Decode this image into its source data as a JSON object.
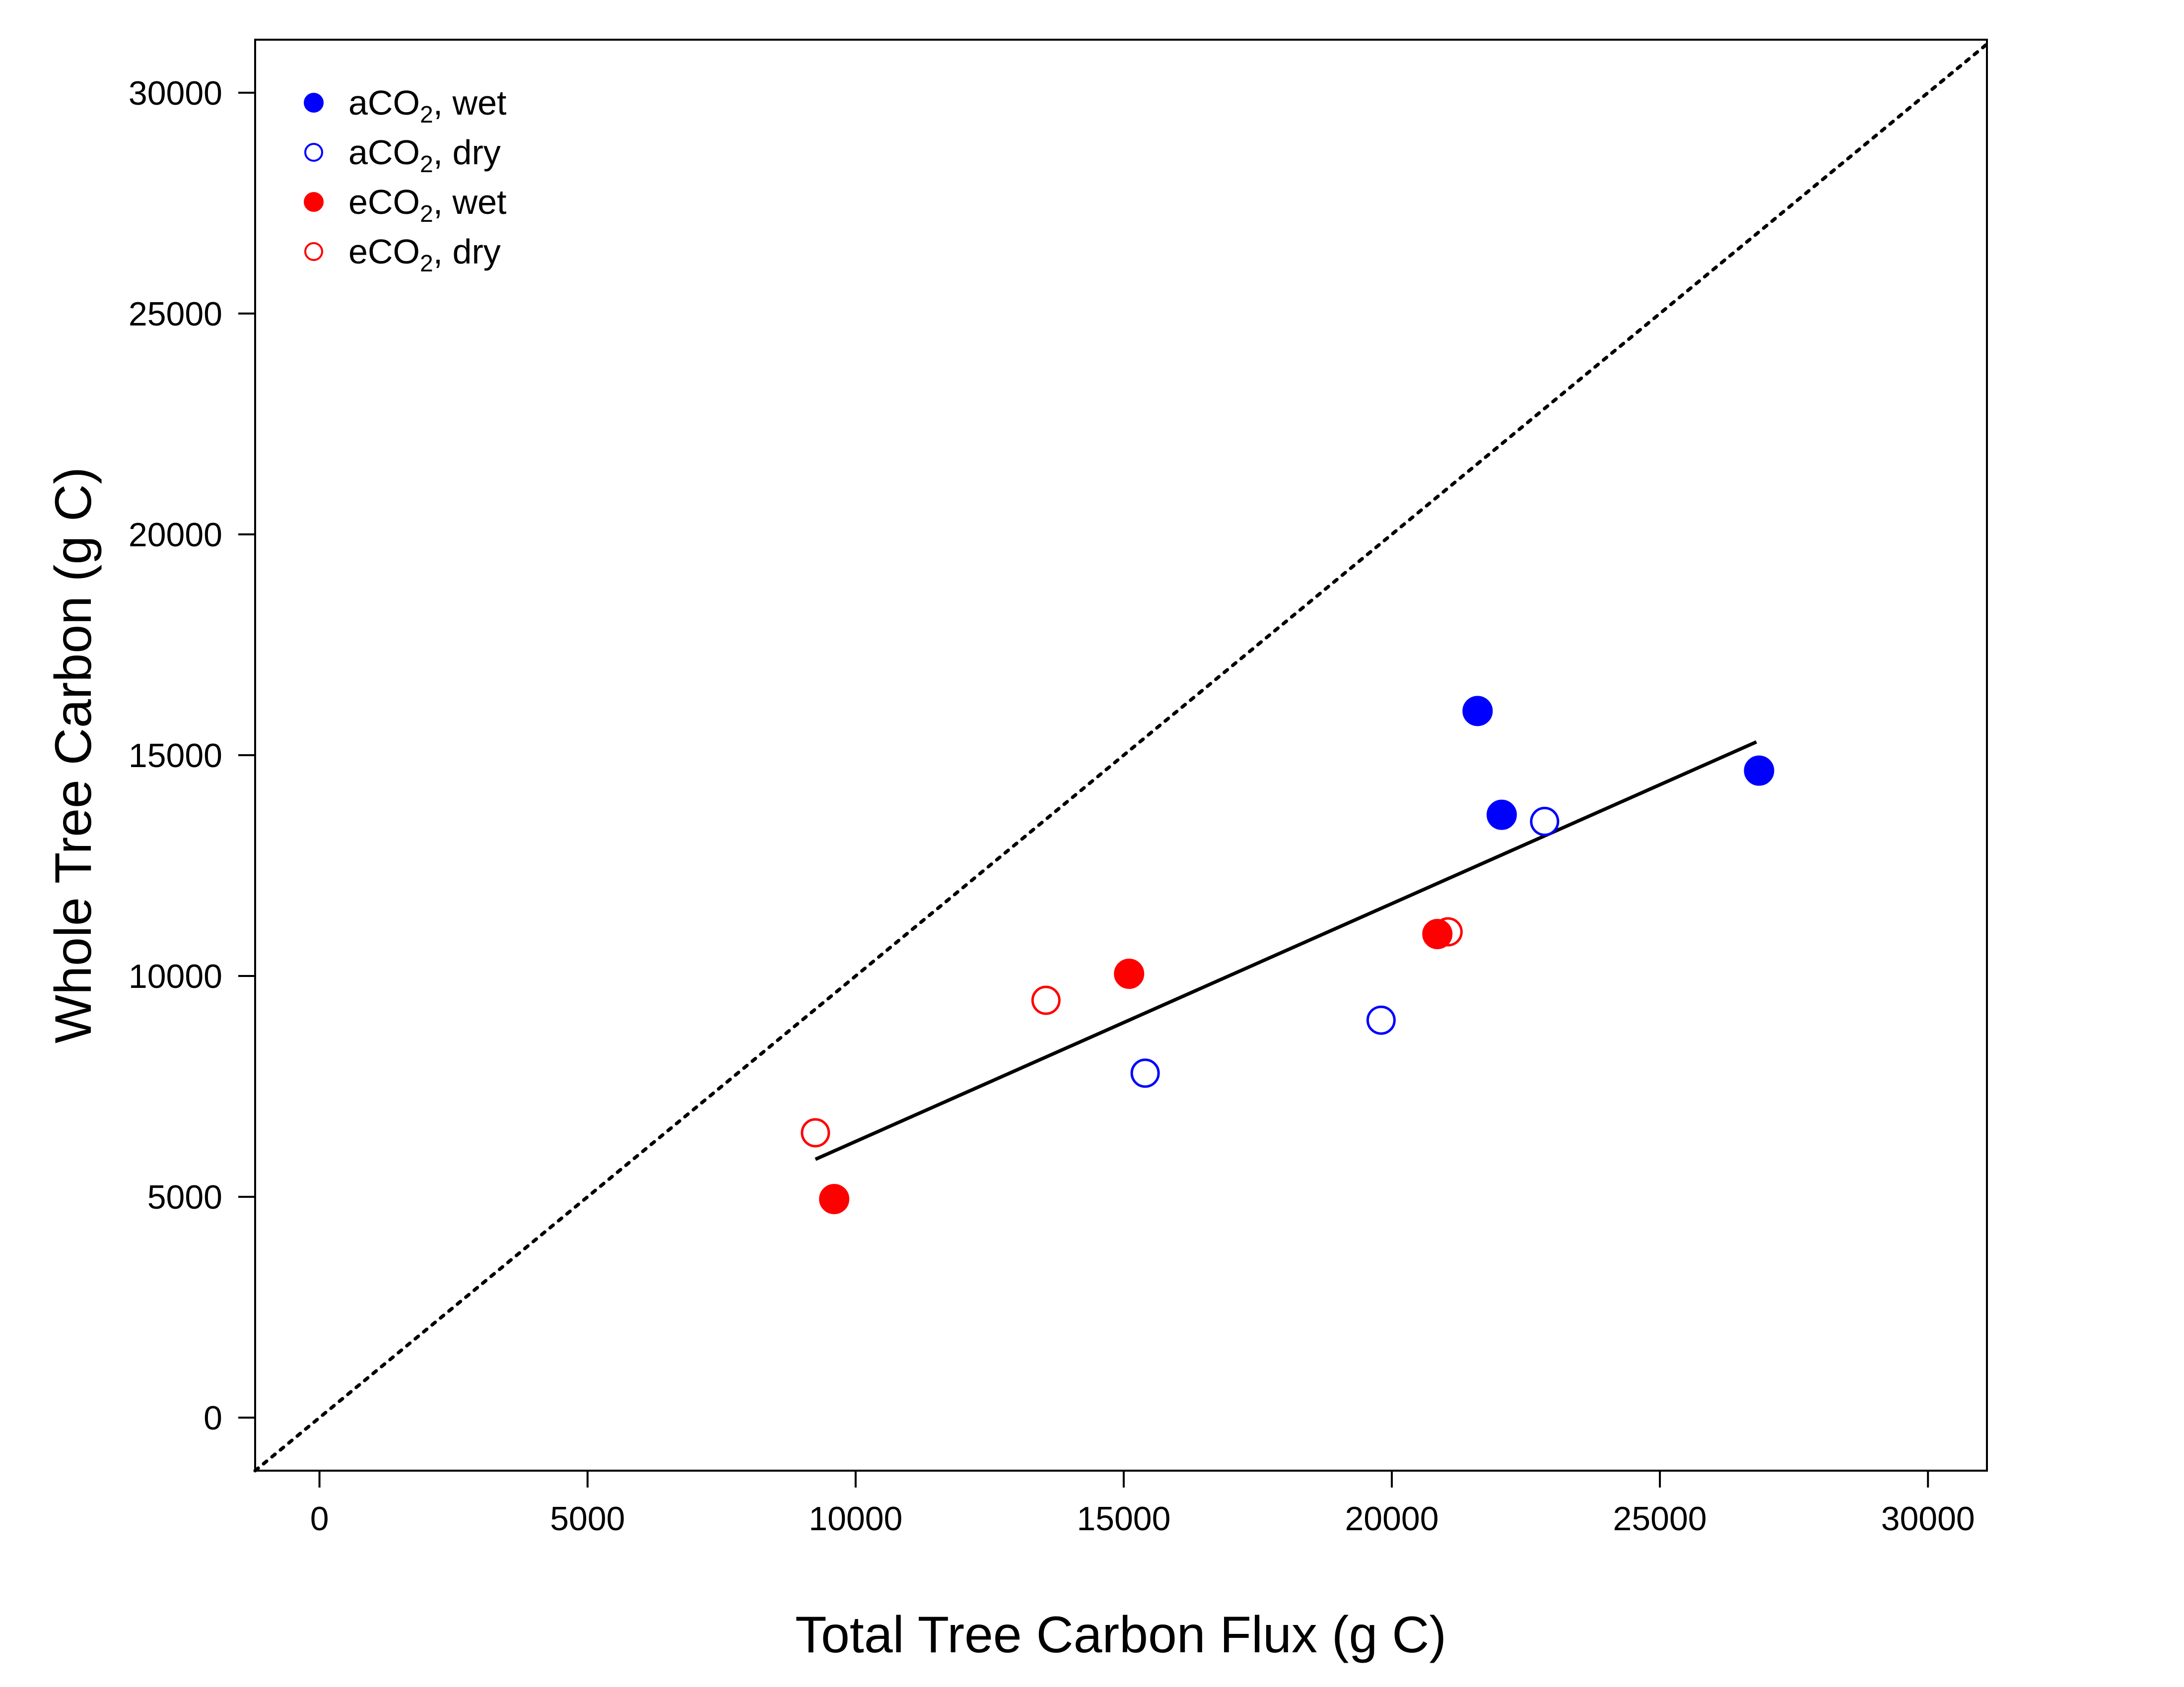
{
  "chart_data": {
    "type": "scatter",
    "xlabel": "Total Tree Carbon Flux  (g C)",
    "ylabel": "Whole Tree Carbon  (g C)",
    "xlim": [
      -1200,
      31100
    ],
    "ylim": [
      -1200,
      31200
    ],
    "xticks": [
      0,
      5000,
      10000,
      15000,
      20000,
      25000,
      30000
    ],
    "yticks": [
      0,
      5000,
      10000,
      15000,
      20000,
      25000,
      30000
    ],
    "grid": false,
    "legend_position": "top-left",
    "legend": [
      {
        "pre": "aCO",
        "sub": "2",
        "post": ", wet",
        "color": "#0000ff",
        "filled": true
      },
      {
        "pre": "aCO",
        "sub": "2",
        "post": ", dry",
        "color": "#0000ff",
        "filled": false
      },
      {
        "pre": "eCO",
        "sub": "2",
        "post": ", wet",
        "color": "#ff0000",
        "filled": true
      },
      {
        "pre": "eCO",
        "sub": "2",
        "post": ", dry",
        "color": "#ff0000",
        "filled": false
      }
    ],
    "series": [
      {
        "color": "#0000ff",
        "filled": true,
        "points": [
          [
            21600,
            16000
          ],
          [
            22050,
            13650
          ],
          [
            26850,
            14650
          ]
        ]
      },
      {
        "color": "#0000ff",
        "filled": false,
        "points": [
          [
            15400,
            7800
          ],
          [
            19800,
            9000
          ],
          [
            22850,
            13500
          ]
        ]
      },
      {
        "color": "#ff0000",
        "filled": true,
        "points": [
          [
            9600,
            4950
          ],
          [
            15100,
            10050
          ],
          [
            20850,
            10950
          ]
        ]
      },
      {
        "color": "#ff0000",
        "filled": false,
        "points": [
          [
            9250,
            6450
          ],
          [
            13550,
            9450
          ],
          [
            21050,
            11000
          ]
        ]
      }
    ],
    "regression_line": {
      "x": [
        9250,
        26800
      ],
      "y": [
        5850,
        15300
      ]
    },
    "one_to_one_line": true
  }
}
